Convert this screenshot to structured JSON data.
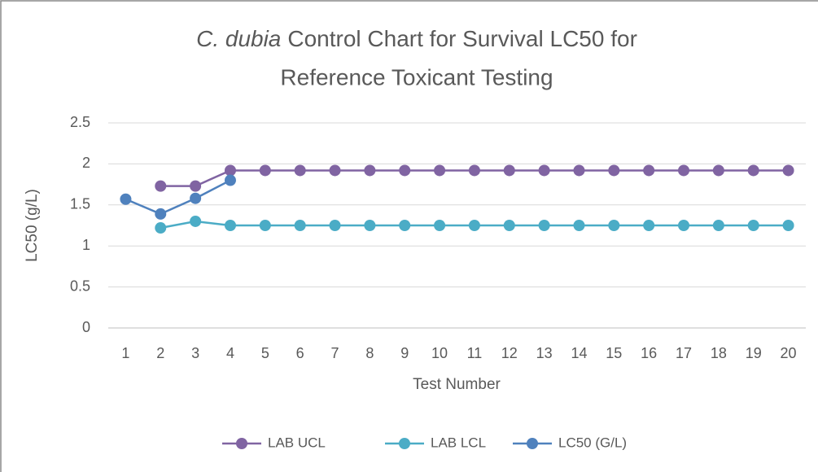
{
  "chart_data": {
    "type": "line",
    "title": {
      "italic": "C. dubia",
      "line1": "Control Chart for Survival LC50 for",
      "line2": "Reference Toxicant Testing"
    },
    "x_label": "Test Number",
    "y_label": "LC50 (g/L)",
    "categories": [
      1,
      2,
      3,
      4,
      5,
      6,
      7,
      8,
      9,
      10,
      11,
      12,
      13,
      14,
      15,
      16,
      17,
      18,
      19,
      20
    ],
    "series": [
      {
        "name": "LAB UCL",
        "color": "#8064a2",
        "values": [
          null,
          1.73,
          1.73,
          1.92,
          1.92,
          1.92,
          1.92,
          1.92,
          1.92,
          1.92,
          1.92,
          1.92,
          1.92,
          1.92,
          1.92,
          1.92,
          1.92,
          1.92,
          1.92,
          1.92
        ]
      },
      {
        "name": "LAB LCL",
        "color": "#4bacc6",
        "values": [
          null,
          1.22,
          1.3,
          1.25,
          1.25,
          1.25,
          1.25,
          1.25,
          1.25,
          1.25,
          1.25,
          1.25,
          1.25,
          1.25,
          1.25,
          1.25,
          1.25,
          1.25,
          1.25,
          1.25
        ]
      },
      {
        "name": "LC50 (G/L)",
        "color": "#4f81bd",
        "values": [
          1.57,
          1.39,
          1.58,
          1.8,
          null,
          null,
          null,
          null,
          null,
          null,
          null,
          null,
          null,
          null,
          null,
          null,
          null,
          null,
          null,
          null
        ]
      }
    ],
    "ylim": [
      0,
      2.5
    ],
    "yticks": [
      0,
      0.5,
      1,
      1.5,
      2,
      2.5
    ],
    "grid": true,
    "legend": "bottom"
  }
}
